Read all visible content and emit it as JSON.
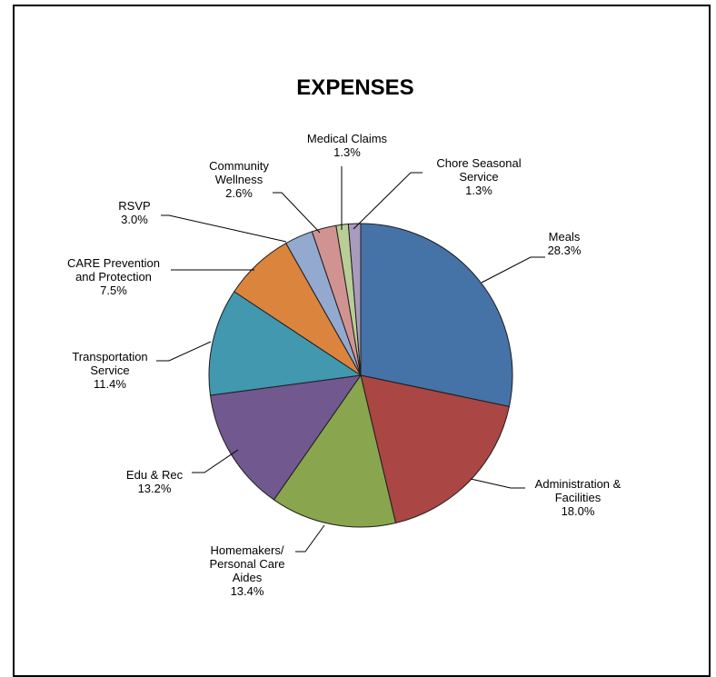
{
  "chart_data": {
    "type": "pie",
    "title": "EXPENSES",
    "slices": [
      {
        "label": [
          "Meals"
        ],
        "value_text": "28.3%",
        "value": 28.3,
        "color": "#4572A7"
      },
      {
        "label": [
          "Administration &",
          "Facilities"
        ],
        "value_text": "18.0%",
        "value": 18.0,
        "color": "#AA4643"
      },
      {
        "label": [
          "Homemakers/",
          "Personal Care",
          "Aides"
        ],
        "value_text": "13.4%",
        "value": 13.4,
        "color": "#89A54E"
      },
      {
        "label": [
          "Edu & Rec"
        ],
        "value_text": "13.2%",
        "value": 13.2,
        "color": "#71588F"
      },
      {
        "label": [
          "Transportation",
          "Service"
        ],
        "value_text": "11.4%",
        "value": 11.4,
        "color": "#4198AF"
      },
      {
        "label": [
          "CARE Prevention",
          "and Protection"
        ],
        "value_text": "7.5%",
        "value": 7.5,
        "color": "#DB843D"
      },
      {
        "label": [
          "RSVP"
        ],
        "value_text": "3.0%",
        "value": 3.0,
        "color": "#93A9CF"
      },
      {
        "label": [
          "Community",
          "Wellness"
        ],
        "value_text": "2.6%",
        "value": 2.6,
        "color": "#D19392"
      },
      {
        "label": [
          "Medical Claims"
        ],
        "value_text": "1.3%",
        "value": 1.3,
        "color": "#B9CD96"
      },
      {
        "label": [
          "Chore Seasonal",
          "Service"
        ],
        "value_text": "1.3%",
        "value": 1.3,
        "color": "#A99BBD"
      }
    ]
  }
}
